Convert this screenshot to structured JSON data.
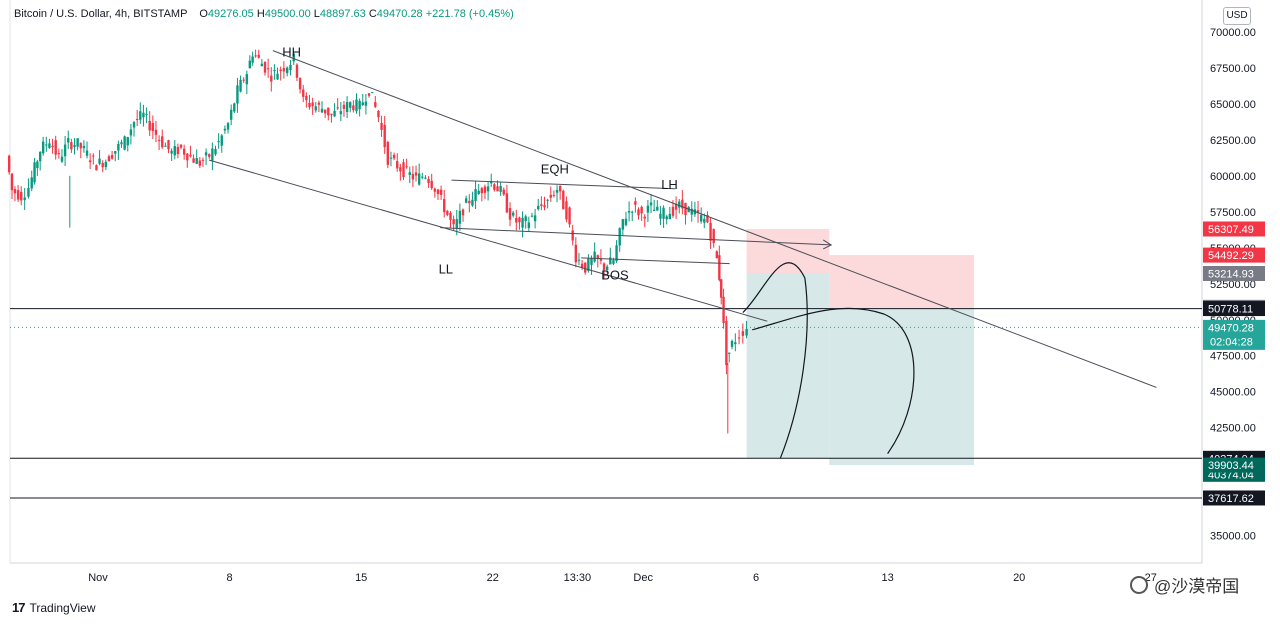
{
  "header": {
    "symbol": "Bitcoin / U.S. Dollar, 4h, BITSTAMP",
    "open_label": "O",
    "open": "49276.05",
    "high_label": "H",
    "high": "49500.00",
    "low_label": "L",
    "low": "48897.63",
    "close_label": "C",
    "close": "49470.28",
    "change": "+221.78 (+0.45%)"
  },
  "currency_button": "USD",
  "branding": "TradingView",
  "watermark": "@沙漠帝国",
  "colors": {
    "up": "#089981",
    "down": "#f23645",
    "red_zone": "#fbd2d3",
    "green_zone": "#cfe5e4"
  },
  "chart_data": {
    "type": "candlestick",
    "yaxis": {
      "min": 33100,
      "max": 71800,
      "ticks": [
        "70000.00",
        "67500.00",
        "65000.00",
        "62500.00",
        "60000.00",
        "57500.00",
        "55000.00",
        "52500.00",
        "50000.00",
        "47500.00",
        "45000.00",
        "42500.00",
        "40000.00",
        "37500.00",
        "35000.00"
      ]
    },
    "xaxis": {
      "ticks": [
        {
          "label": "Nov",
          "day": 1
        },
        {
          "label": "8",
          "day": 8
        },
        {
          "label": "15",
          "day": 15
        },
        {
          "label": "22",
          "day": 22
        },
        {
          "label": "13:30",
          "day": 26.5
        },
        {
          "label": "Dec",
          "day": 30
        },
        {
          "label": "6",
          "day": 36
        },
        {
          "label": "13",
          "day": 43
        },
        {
          "label": "20",
          "day": 50
        },
        {
          "label": "27",
          "day": 57
        }
      ]
    },
    "candles_close_path": [
      [
        -3.8,
        61400
      ],
      [
        -3.5,
        59000
      ],
      [
        -3,
        58600
      ],
      [
        -2.6,
        59200
      ],
      [
        -2,
        61800
      ],
      [
        -1.5,
        62500
      ],
      [
        -1,
        61200
      ],
      [
        -0.5,
        62300
      ],
      [
        0,
        62200
      ],
      [
        0.5,
        61500
      ],
      [
        1,
        60800
      ],
      [
        1.5,
        61100
      ],
      [
        2,
        61800
      ],
      [
        2.5,
        62400
      ],
      [
        3,
        63800
      ],
      [
        3.5,
        64200
      ],
      [
        4,
        63200
      ],
      [
        4.5,
        62300
      ],
      [
        5,
        61600
      ],
      [
        5.5,
        61900
      ],
      [
        6,
        61300
      ],
      [
        6.5,
        60900
      ],
      [
        7,
        61400
      ],
      [
        7.5,
        62300
      ],
      [
        8,
        63600
      ],
      [
        8.5,
        65900
      ],
      [
        9,
        67200
      ],
      [
        9.3,
        68600
      ],
      [
        9.8,
        67800
      ],
      [
        10.3,
        67000
      ],
      [
        10.8,
        67400
      ],
      [
        11.5,
        68100
      ],
      [
        12,
        65200
      ],
      [
        12.5,
        64900
      ],
      [
        13,
        64700
      ],
      [
        13.5,
        64200
      ],
      [
        14,
        64600
      ],
      [
        14.5,
        65000
      ],
      [
        15,
        64800
      ],
      [
        15.5,
        66000
      ],
      [
        16,
        64100
      ],
      [
        16.5,
        61200
      ],
      [
        17,
        60700
      ],
      [
        17.5,
        60200
      ],
      [
        18,
        59800
      ],
      [
        18.5,
        60100
      ],
      [
        19,
        59200
      ],
      [
        19.5,
        57800
      ],
      [
        20,
        56300
      ],
      [
        20.5,
        57700
      ],
      [
        21,
        58600
      ],
      [
        21.5,
        59100
      ],
      [
        22,
        59600
      ],
      [
        22.5,
        58900
      ],
      [
        23,
        57300
      ],
      [
        23.5,
        56600
      ],
      [
        24,
        56900
      ],
      [
        24.5,
        57700
      ],
      [
        25,
        58300
      ],
      [
        25.5,
        59100
      ],
      [
        26,
        57400
      ],
      [
        26.5,
        54400
      ],
      [
        27,
        53600
      ],
      [
        27.5,
        54300
      ],
      [
        28,
        53700
      ],
      [
        28.5,
        54100
      ],
      [
        29,
        56900
      ],
      [
        29.5,
        57900
      ],
      [
        30,
        57300
      ],
      [
        30.5,
        57800
      ],
      [
        31,
        57300
      ],
      [
        31.5,
        57500
      ],
      [
        32,
        57900
      ],
      [
        32.5,
        57600
      ],
      [
        33,
        57200
      ],
      [
        33.5,
        56800
      ],
      [
        34,
        54200
      ],
      [
        34.2,
        51800
      ],
      [
        34.5,
        47200
      ],
      [
        34.8,
        48300
      ],
      [
        35.2,
        49000
      ],
      [
        35.6,
        49470
      ]
    ],
    "price_labels": [
      {
        "value": 56307.49,
        "text": "56307.49",
        "color": "#f23645"
      },
      {
        "value": 54492.29,
        "text": "54492.29",
        "color": "#f23645"
      },
      {
        "value": 53214.93,
        "text": "53214.93",
        "color": "#787b86"
      },
      {
        "value": 50861.88,
        "text": "50861.88",
        "color": "#787b86"
      },
      {
        "value": 50778.11,
        "text": "50778.11",
        "color": "#131722"
      },
      {
        "value": 49470.28,
        "text": "49470.28",
        "color": "#26a69a",
        "sub": "02:04:28"
      },
      {
        "value": 40374.04,
        "text": "40374.04",
        "color": "#131722"
      },
      {
        "value": 40374.04,
        "text": "40374.04",
        "color": "#00695c",
        "offset": 16
      },
      {
        "value": 39903.44,
        "text": "39903.44",
        "color": "#00695c"
      },
      {
        "value": 37617.62,
        "text": "37617.62",
        "color": "#131722"
      }
    ],
    "horizontal_lines": [
      50778.11,
      40374.04,
      37617.62
    ],
    "annotations": [
      {
        "text": "HH",
        "day": 11.3,
        "price": 68300
      },
      {
        "text": "EQH",
        "day": 25.3,
        "price": 60150
      },
      {
        "text": "LH",
        "day": 31.4,
        "price": 59100
      },
      {
        "text": "LL",
        "day": 19.5,
        "price": 53200
      },
      {
        "text": "BOS",
        "day": 28.5,
        "price": 52800
      }
    ]
  }
}
